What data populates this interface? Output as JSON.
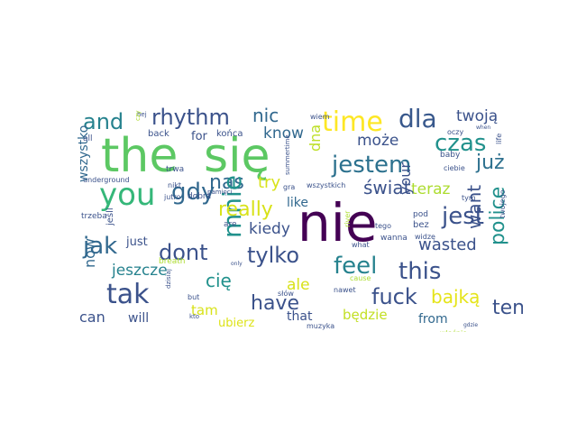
{
  "words": [
    {
      "text": "the",
      "color": "#5cc863"
    },
    {
      "text": "się",
      "color": "#5cc863"
    },
    {
      "text": "nie",
      "color": "#440154"
    },
    {
      "text": "you",
      "color": "#35b779"
    },
    {
      "text": "time",
      "color": "#fde725"
    },
    {
      "text": "jestem",
      "color": "#2c718e"
    },
    {
      "text": "dla",
      "color": "#38588c"
    },
    {
      "text": "jest",
      "color": "#3b528b"
    },
    {
      "text": "czas",
      "color": "#21918c"
    },
    {
      "text": "rhythm",
      "color": "#3b528b"
    },
    {
      "text": "and",
      "color": "#26828e"
    },
    {
      "text": "nic",
      "color": "#31688e"
    },
    {
      "text": "twoją",
      "color": "#3b528b"
    },
    {
      "text": "już",
      "color": "#2d708e"
    },
    {
      "text": "gdy",
      "color": "#31688e"
    },
    {
      "text": "nas",
      "color": "#31688e"
    },
    {
      "text": "know",
      "color": "#31688e"
    },
    {
      "text": "może",
      "color": "#3b528b"
    },
    {
      "text": "dna",
      "color": "#bddf26"
    },
    {
      "text": "świat",
      "color": "#3b528b"
    },
    {
      "text": "teraz",
      "color": "#addc30"
    },
    {
      "text": "jak",
      "color": "#31688e"
    },
    {
      "text": "tylko",
      "color": "#3b528b"
    },
    {
      "text": "mnie",
      "color": "#21918c"
    },
    {
      "text": "really",
      "color": "#d8e219"
    },
    {
      "text": "try",
      "color": "#d8e219"
    },
    {
      "text": "your",
      "color": "#3b528b"
    },
    {
      "text": "want",
      "color": "#3b528b"
    },
    {
      "text": "police",
      "color": "#21918c"
    },
    {
      "text": "kiedy",
      "color": "#3b528b"
    },
    {
      "text": "like",
      "color": "#31688e"
    },
    {
      "text": "dont",
      "color": "#3b528b"
    },
    {
      "text": "feel",
      "color": "#26828e"
    },
    {
      "text": "this",
      "color": "#3b528b"
    },
    {
      "text": "wasted",
      "color": "#3b528b"
    },
    {
      "text": "tak",
      "color": "#3b528b"
    },
    {
      "text": "ale",
      "color": "#d8e219"
    },
    {
      "text": "fuck",
      "color": "#3b528b"
    },
    {
      "text": "bajką",
      "color": "#e5e419"
    },
    {
      "text": "ten",
      "color": "#3b528b"
    },
    {
      "text": "jeszcze",
      "color": "#26828e"
    },
    {
      "text": "cię",
      "color": "#21918c"
    },
    {
      "text": "have",
      "color": "#3b528b"
    },
    {
      "text": "now",
      "color": "#31688e"
    },
    {
      "text": "can",
      "color": "#3b528b"
    },
    {
      "text": "will",
      "color": "#3b528b"
    },
    {
      "text": "tam",
      "color": "#d8e219"
    },
    {
      "text": "that",
      "color": "#3b528b"
    },
    {
      "text": "będzie",
      "color": "#c2df23"
    },
    {
      "text": "from",
      "color": "#31688e"
    },
    {
      "text": "ubierz",
      "color": "#dde318"
    },
    {
      "text": "wszystko",
      "color": "#31688e"
    },
    {
      "text": "just",
      "color": "#3b528b"
    },
    {
      "text": "for",
      "color": "#3b528b"
    },
    {
      "text": "końca",
      "color": "#3b528b"
    },
    {
      "text": "back",
      "color": "#3b528b"
    },
    {
      "text": "hej",
      "color": "#3b528b"
    },
    {
      "text": "czy",
      "color": "#addc30"
    },
    {
      "text": "wiem",
      "color": "#3b528b"
    },
    {
      "text": "oczy",
      "color": "#3b528b"
    },
    {
      "text": "baby",
      "color": "#3b528b"
    },
    {
      "text": "life",
      "color": "#3b528b"
    },
    {
      "text": "all",
      "color": "#3b528b"
    },
    {
      "text": "trwa",
      "color": "#3b528b"
    },
    {
      "text": "nikt",
      "color": "#3b528b"
    },
    {
      "text": "pamięci",
      "color": "#3b528b"
    },
    {
      "text": "summertime",
      "color": "#3b528b"
    },
    {
      "text": "gra",
      "color": "#3b528b"
    },
    {
      "text": "wszystkich",
      "color": "#3b528b"
    },
    {
      "text": "underground",
      "color": "#3b528b"
    },
    {
      "text": "jutro",
      "color": "#3b528b"
    },
    {
      "text": "dobra",
      "color": "#3b528b"
    },
    {
      "text": "trzeba",
      "color": "#3b528b"
    },
    {
      "text": "jeśli",
      "color": "#3b528b"
    },
    {
      "text": "are",
      "color": "#3b528b"
    },
    {
      "text": "river",
      "color": "#addc30"
    },
    {
      "text": "tego",
      "color": "#3b528b"
    },
    {
      "text": "pod",
      "color": "#3b528b"
    },
    {
      "text": "wanna",
      "color": "#3b528b"
    },
    {
      "text": "bez",
      "color": "#3b528b"
    },
    {
      "text": "ciebie",
      "color": "#3b528b"
    },
    {
      "text": "when",
      "color": "#3b528b"
    },
    {
      "text": "tym",
      "color": "#3b528b"
    },
    {
      "text": "twojego",
      "color": "#3b528b"
    },
    {
      "text": "what",
      "color": "#3b528b"
    },
    {
      "text": "widzę",
      "color": "#3b528b"
    },
    {
      "text": "breath",
      "color": "#addc30"
    },
    {
      "text": "słów",
      "color": "#3b528b"
    },
    {
      "text": "cause",
      "color": "#addc30"
    },
    {
      "text": "nawet",
      "color": "#3b528b"
    },
    {
      "text": "dzisiaj",
      "color": "#3b528b"
    },
    {
      "text": "but",
      "color": "#3b528b"
    },
    {
      "text": "only",
      "color": "#3b528b"
    },
    {
      "text": "muzyka",
      "color": "#3b528b"
    },
    {
      "text": "kto",
      "color": "#3b528b"
    },
    {
      "text": "gdzie",
      "color": "#3b528b"
    },
    {
      "text": "właśnie",
      "color": "#addc30"
    }
  ]
}
